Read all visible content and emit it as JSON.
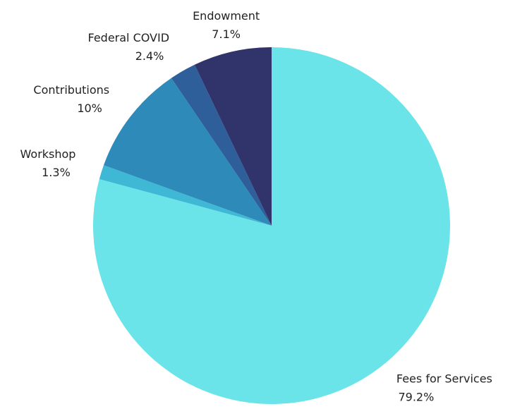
{
  "chart_data": {
    "type": "pie",
    "categories": [
      "Fees for Services",
      "Workshop",
      "Contributions",
      "Federal COVID",
      "Endowment"
    ],
    "values": [
      79.2,
      1.3,
      10,
      2.4,
      7.1
    ],
    "value_labels": [
      "79.2%",
      "1.3%",
      "10%",
      "2.4%",
      "7.1%"
    ],
    "colors": [
      "#6ae4e8",
      "#3fb8d6",
      "#2e8ab8",
      "#2e5f9a",
      "#31336b"
    ]
  }
}
